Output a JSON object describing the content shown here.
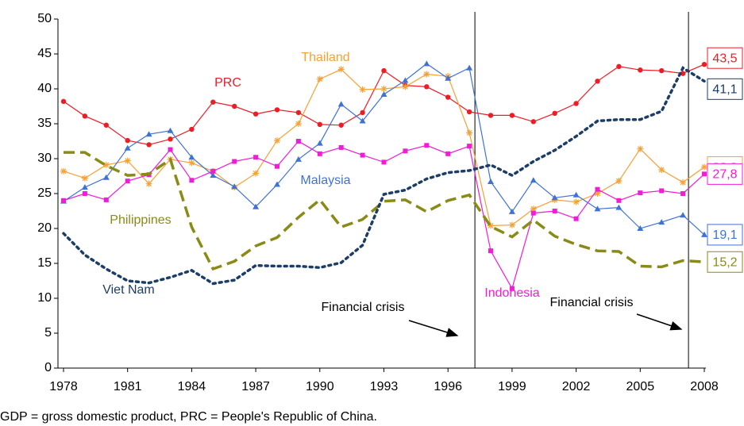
{
  "chart_data": {
    "type": "line",
    "x": [
      1978,
      1979,
      1980,
      1981,
      1982,
      1983,
      1984,
      1985,
      1986,
      1987,
      1988,
      1989,
      1990,
      1991,
      1992,
      1993,
      1994,
      1995,
      1996,
      1997,
      1998,
      1999,
      2000,
      2001,
      2002,
      2003,
      2004,
      2005,
      2006,
      2007,
      2008
    ],
    "xlim": [
      1978,
      2008
    ],
    "xticks": [
      1978,
      1981,
      1984,
      1987,
      1990,
      1993,
      1996,
      1999,
      2002,
      2005,
      2008
    ],
    "ylim": [
      0,
      50
    ],
    "yticks": [
      0,
      5,
      10,
      15,
      20,
      25,
      30,
      35,
      40,
      45,
      50
    ],
    "grid": false,
    "series": [
      {
        "name": "PRC",
        "color": "#ee1c25",
        "marker": "circle",
        "line": "solid",
        "values": [
          38.2,
          36.1,
          34.8,
          32.6,
          32.0,
          32.8,
          34.2,
          38.1,
          37.5,
          36.4,
          37.0,
          36.6,
          34.9,
          34.8,
          36.6,
          42.6,
          40.5,
          40.3,
          38.8,
          36.7,
          36.2,
          36.2,
          35.3,
          36.5,
          37.9,
          41.1,
          43.2,
          42.7,
          42.6,
          42.2,
          43.5
        ],
        "value_labels": [
          null,
          null,
          null,
          null,
          null,
          null,
          null,
          null,
          null,
          null,
          null,
          null,
          null,
          null,
          null,
          null,
          null,
          null,
          null,
          null,
          null,
          null,
          null,
          null,
          null,
          null,
          null,
          null,
          null,
          null,
          "43,5"
        ]
      },
      {
        "name": "Thailand",
        "color": "#f7a033",
        "marker": "asterisk",
        "line": "solid",
        "values": [
          28.2,
          27.2,
          29.1,
          29.7,
          26.4,
          29.9,
          29.4,
          28.2,
          25.9,
          27.9,
          32.6,
          35.0,
          41.4,
          42.8,
          39.9,
          40.0,
          40.3,
          42.1,
          41.8,
          33.7,
          20.4,
          20.5,
          22.8,
          24.1,
          23.8,
          25.0,
          26.8,
          31.4,
          28.4,
          26.6,
          28.8
        ],
        "value_labels": [
          null,
          null,
          null,
          null,
          null,
          null,
          null,
          null,
          null,
          null,
          null,
          null,
          null,
          null,
          null,
          null,
          null,
          null,
          null,
          null,
          null,
          null,
          null,
          null,
          null,
          null,
          null,
          null,
          null,
          null,
          "28,8"
        ]
      },
      {
        "name": "Malaysia",
        "color": "#3f72d6",
        "marker": "triangle",
        "line": "solid",
        "values": [
          23.9,
          25.9,
          27.3,
          31.5,
          33.5,
          34.0,
          30.2,
          27.6,
          26.0,
          23.1,
          26.3,
          29.9,
          32.2,
          37.8,
          35.4,
          39.2,
          41.2,
          43.6,
          41.5,
          43.0,
          26.7,
          22.4,
          26.9,
          24.4,
          24.8,
          22.8,
          23.0,
          20.0,
          20.9,
          21.9,
          19.1
        ],
        "value_labels": [
          null,
          null,
          null,
          null,
          null,
          null,
          null,
          null,
          null,
          null,
          null,
          null,
          null,
          null,
          null,
          null,
          null,
          null,
          null,
          null,
          null,
          null,
          null,
          null,
          null,
          null,
          null,
          null,
          null,
          null,
          "19,1"
        ]
      },
      {
        "name": "Indonesia",
        "color": "#f21bd6",
        "marker": "square",
        "line": "solid",
        "values": [
          24.0,
          25.0,
          24.1,
          26.8,
          27.7,
          31.3,
          26.9,
          28.2,
          29.6,
          30.2,
          28.9,
          32.5,
          30.7,
          31.6,
          30.5,
          29.5,
          31.1,
          31.9,
          30.7,
          31.8,
          16.8,
          11.4,
          22.2,
          22.5,
          21.4,
          25.6,
          24.0,
          25.1,
          25.4,
          25.0,
          27.8
        ],
        "value_labels": [
          null,
          null,
          null,
          null,
          null,
          null,
          null,
          null,
          null,
          null,
          null,
          null,
          null,
          null,
          null,
          null,
          null,
          null,
          null,
          null,
          null,
          null,
          null,
          null,
          null,
          null,
          null,
          null,
          null,
          null,
          "27,8"
        ]
      },
      {
        "name": "Philippines",
        "color": "#8a8a16",
        "marker": "none",
        "line": "dashed",
        "values": [
          30.9,
          30.9,
          29.0,
          27.6,
          27.8,
          29.9,
          20.2,
          14.2,
          15.3,
          17.5,
          18.7,
          21.6,
          24.1,
          20.2,
          21.3,
          23.9,
          24.1,
          22.4,
          24.0,
          24.8,
          20.3,
          18.8,
          21.2,
          18.9,
          17.7,
          16.8,
          16.7,
          14.6,
          14.5,
          15.4,
          15.2
        ],
        "value_labels": [
          null,
          null,
          null,
          null,
          null,
          null,
          null,
          null,
          null,
          null,
          null,
          null,
          null,
          null,
          null,
          null,
          null,
          null,
          null,
          null,
          null,
          null,
          null,
          null,
          null,
          null,
          null,
          null,
          null,
          null,
          "15,2"
        ]
      },
      {
        "name": "Viet Nam",
        "color": "#1c3d66",
        "marker": "none",
        "line": "dotted",
        "values": [
          19.3,
          16.2,
          14.2,
          12.5,
          12.2,
          13.0,
          14.0,
          12.1,
          12.6,
          14.7,
          14.6,
          14.6,
          14.4,
          15.1,
          17.6,
          24.9,
          25.5,
          27.1,
          28.0,
          28.3,
          29.1,
          27.6,
          29.6,
          31.2,
          33.2,
          35.4,
          35.6,
          35.6,
          36.8,
          43.0,
          41.1
        ],
        "value_labels": [
          null,
          null,
          null,
          null,
          null,
          null,
          null,
          null,
          null,
          null,
          null,
          null,
          null,
          null,
          null,
          null,
          null,
          null,
          null,
          null,
          null,
          null,
          null,
          null,
          null,
          null,
          null,
          null,
          null,
          null,
          "41,1"
        ]
      }
    ],
    "annotations": [
      {
        "text": "Financial crisis",
        "x": 1997
      },
      {
        "text": "Financial crisis",
        "x": 2007
      }
    ],
    "footnote": "GDP = gross domestic product, PRC = People's Republic of China."
  }
}
